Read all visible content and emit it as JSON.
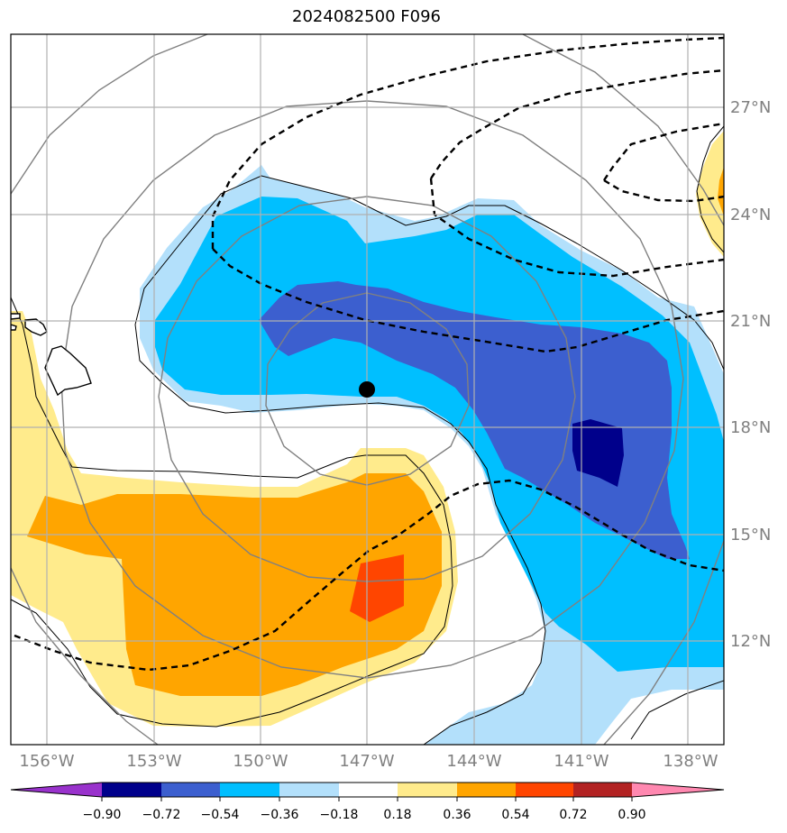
{
  "title": "2024082500 F096",
  "map": {
    "lon_range": [
      -157,
      -137.5
    ],
    "lat_range": [
      9.5,
      29.5
    ],
    "lon_ticks": [
      "156°W",
      "153°W",
      "150°W",
      "147°W",
      "144°W",
      "141°W",
      "138°W"
    ],
    "lat_ticks": [
      "27°N",
      "24°N",
      "21°N",
      "18°N",
      "15°N",
      "12°N"
    ],
    "grid": true,
    "center_marker": {
      "lon": -147,
      "lat": 19.1
    },
    "colors": {
      "yellow": "#ffeb8c",
      "orange": "#ffa500",
      "red_orange": "#ff4500",
      "light_blue": "#b3e0fb",
      "deep_sky": "#00bfff",
      "royal_blue": "#3c5fcf",
      "navy": "#00008b"
    }
  },
  "colorbar": {
    "ticks": [
      "−0.90",
      "−0.72",
      "−0.54",
      "−0.36",
      "−0.18",
      "0.18",
      "0.36",
      "0.54",
      "0.72",
      "0.90"
    ],
    "colors": [
      "#9932cc",
      "#00008b",
      "#3c5fcf",
      "#00bfff",
      "#b3e0fb",
      "#ffffff",
      "#ffeb8c",
      "#ffa500",
      "#ff4500",
      "#b22222",
      "#ff88b0"
    ]
  }
}
